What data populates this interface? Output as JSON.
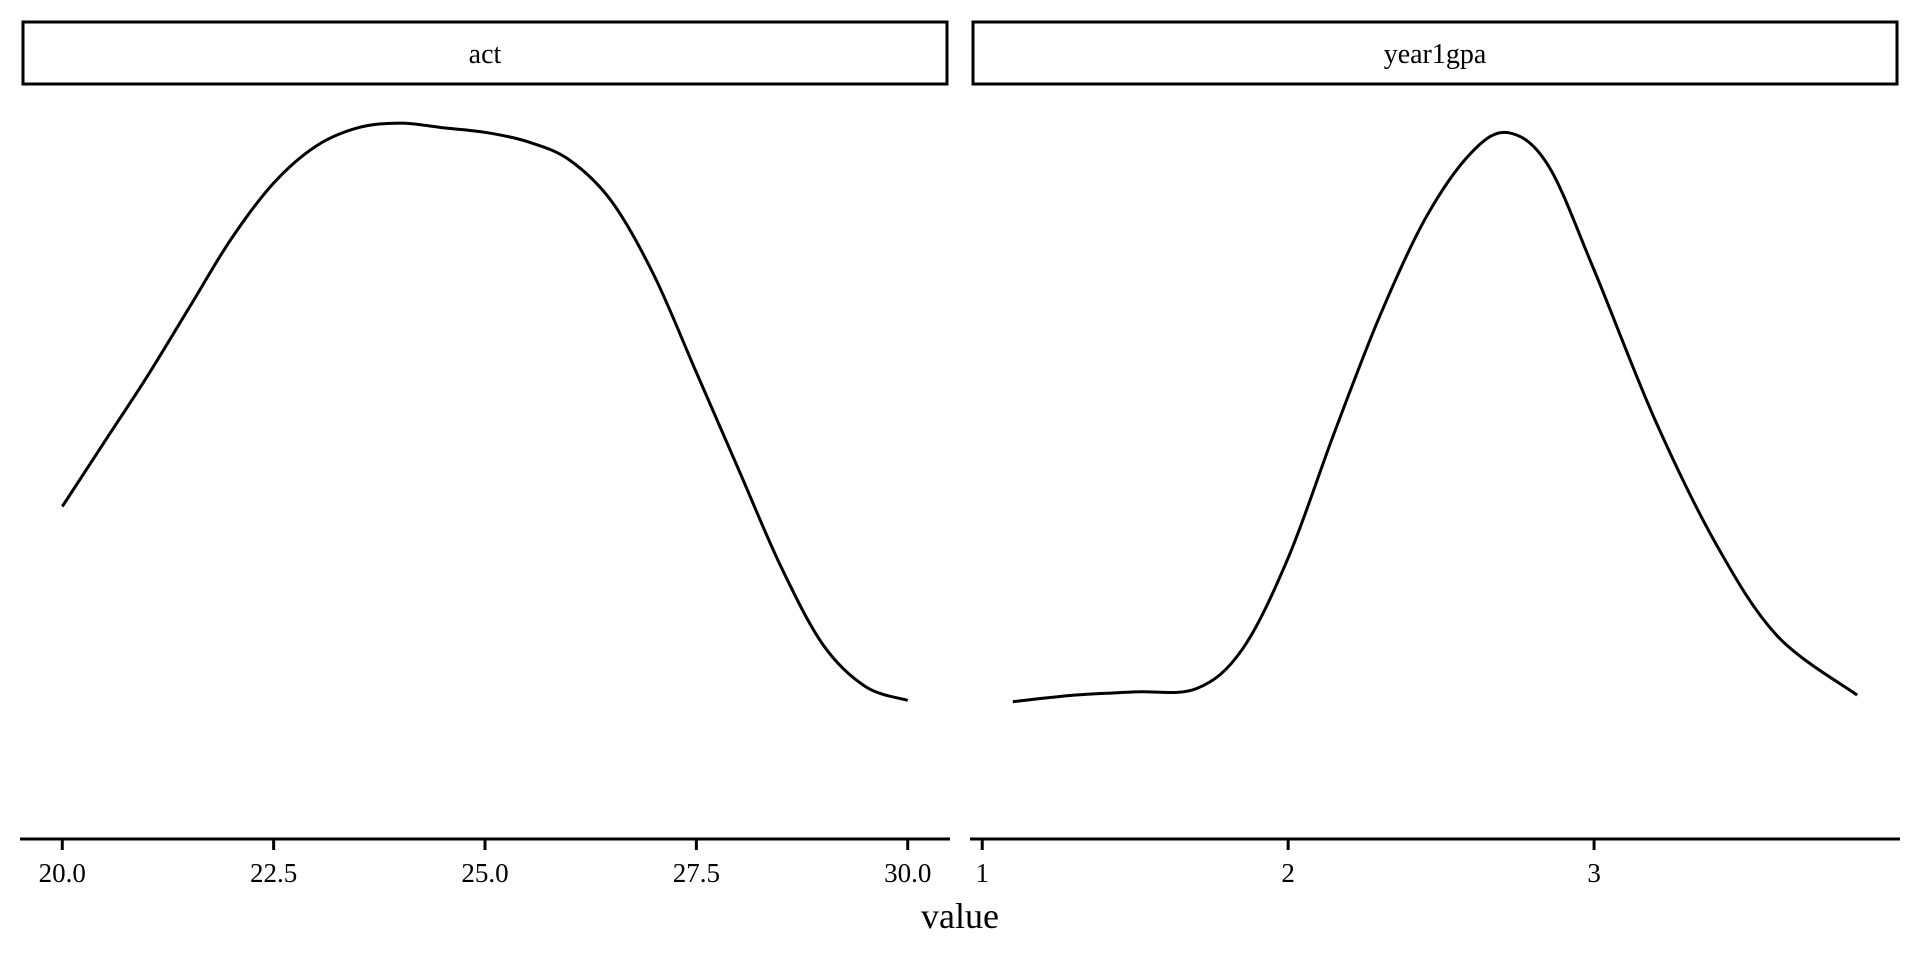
{
  "chart_data": {
    "type": "line",
    "xlabel": "value",
    "ylabel": "",
    "grid": false,
    "legend": "none",
    "line_color": "#000000",
    "panels": [
      {
        "title": "act",
        "xlim": [
          19.5,
          30.5
        ],
        "ylim": [
          0,
          0.16
        ],
        "xticks": [
          20.0,
          22.5,
          25.0,
          27.5,
          30.0
        ],
        "xtick_labels": [
          "20.0",
          "22.5",
          "25.0",
          "27.5",
          "30.0"
        ],
        "x": [
          20.0,
          20.5,
          21.0,
          21.5,
          22.0,
          22.5,
          23.0,
          23.5,
          24.0,
          24.5,
          25.0,
          25.5,
          26.0,
          26.5,
          27.0,
          27.5,
          28.0,
          28.5,
          29.0,
          29.5,
          30.0
        ],
        "y": [
          0.072,
          0.086,
          0.1,
          0.115,
          0.13,
          0.142,
          0.15,
          0.154,
          0.155,
          0.154,
          0.153,
          0.151,
          0.147,
          0.138,
          0.122,
          0.101,
          0.08,
          0.059,
          0.042,
          0.033,
          0.03
        ]
      },
      {
        "title": "year1gpa",
        "xlim": [
          0.96,
          4.0
        ],
        "ylim": [
          0,
          1.13
        ],
        "xticks": [
          1,
          2,
          3
        ],
        "xtick_labels": [
          "1",
          "2",
          "3"
        ],
        "x": [
          1.1,
          1.3,
          1.5,
          1.7,
          1.85,
          2.0,
          2.15,
          2.3,
          2.45,
          2.6,
          2.72,
          2.85,
          3.0,
          3.2,
          3.4,
          3.6,
          3.86
        ],
        "y": [
          0.21,
          0.22,
          0.225,
          0.23,
          0.29,
          0.43,
          0.62,
          0.8,
          0.95,
          1.05,
          1.08,
          1.03,
          0.87,
          0.64,
          0.45,
          0.31,
          0.22
        ]
      }
    ]
  }
}
